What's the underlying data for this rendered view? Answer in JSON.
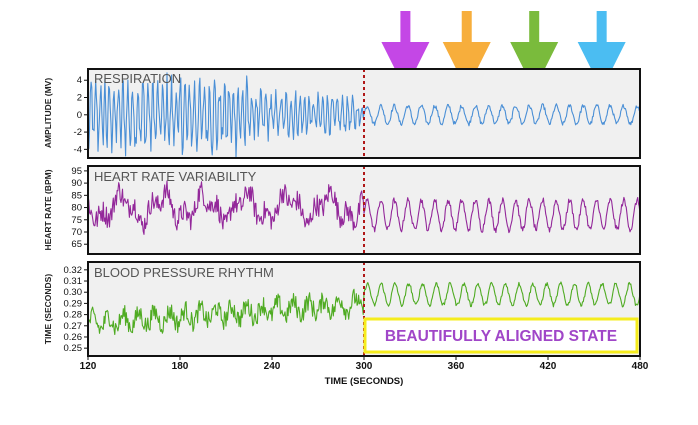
{
  "chart_data": {
    "type": "line",
    "x_range": [
      120,
      480
    ],
    "x_ticks": [
      120,
      180,
      240,
      300,
      360,
      420,
      480
    ],
    "xlabel": "TIME (SECONDS)",
    "marker_line_x": 300,
    "callout": "BEAUTIFULLY ALIGNED STATE",
    "arrows": [
      {
        "name": "purple",
        "x": 327,
        "color": "#c447e6"
      },
      {
        "name": "orange",
        "x": 367,
        "color": "#f7ae3c"
      },
      {
        "name": "green",
        "x": 411,
        "color": "#7abb3c"
      },
      {
        "name": "blue",
        "x": 455,
        "color": "#4bbdf2"
      }
    ],
    "panels": [
      {
        "key": "respiration",
        "title": "RESPIRATION",
        "ylabel": "AMPLITUDE (MV)",
        "ylim": [
          -5,
          5.3
        ],
        "yticks": [
          4,
          2,
          0,
          -2,
          -4
        ],
        "color": "#4a8fd6",
        "coherent_period_s": 8.8
      },
      {
        "key": "hrv",
        "title": "HEART RATE VARIABILITY",
        "ylabel": "HEART RATE (BPM)",
        "ylim": [
          61,
          97
        ],
        "yticks": [
          95,
          90,
          85,
          80,
          75,
          70,
          65
        ],
        "color": "#93289a",
        "coherent_period_s": 8.8
      },
      {
        "key": "bp",
        "title": "BLOOD PRESSURE RHYTHM",
        "ylabel": "TIME (SECONDS)",
        "ylim": [
          0.243,
          0.327
        ],
        "yticks": [
          0.32,
          0.31,
          0.3,
          0.29,
          0.28,
          0.27,
          0.26,
          0.25
        ],
        "color": "#4fab22",
        "coherent_period_s": 9.0
      }
    ]
  }
}
